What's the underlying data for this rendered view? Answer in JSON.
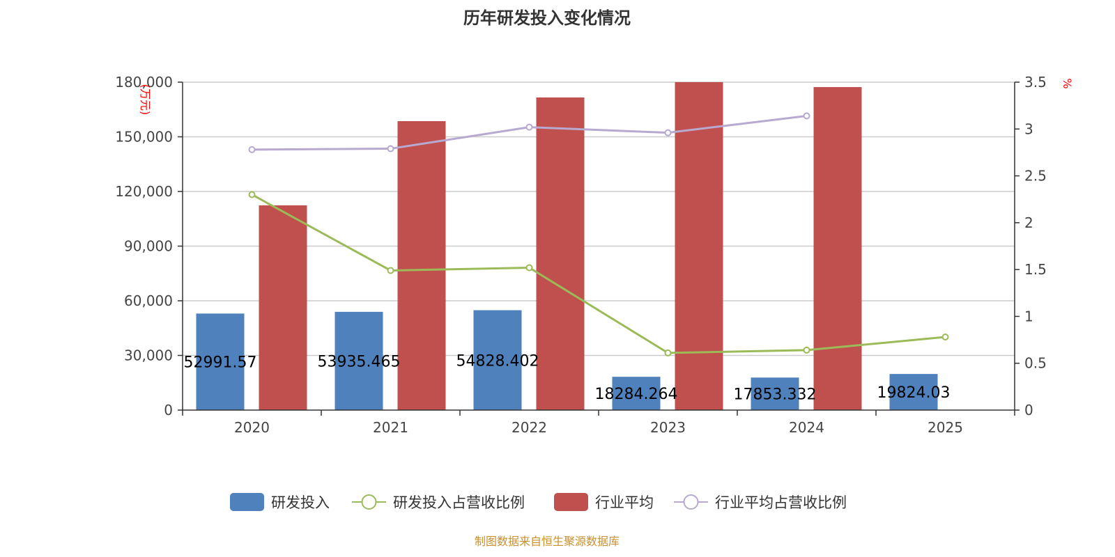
{
  "footer": "制图数据来自恒生聚源数据库",
  "chart_data": {
    "type": "bar+line",
    "title": "历年研发投入变化情况",
    "categories": [
      "2020",
      "2021",
      "2022",
      "2023",
      "2024",
      "2025"
    ],
    "ylabel_left": "(万元)",
    "ylabel_right": "%",
    "ylim_left": [
      0,
      180000
    ],
    "yticks_left": [
      "0",
      "30,000",
      "60,000",
      "90,000",
      "120,000",
      "150,000",
      "180,000"
    ],
    "ylim_right": [
      0,
      3.5
    ],
    "yticks_right": [
      "0",
      "0.5",
      "1",
      "1.5",
      "2",
      "2.5",
      "3",
      "3.5"
    ],
    "grid": true,
    "legend_position": "bottom",
    "series": [
      {
        "name": "研发投入",
        "type": "bar",
        "axis": "left",
        "color": "#4f81bd",
        "values": [
          52991.57,
          53935.465,
          54828.402,
          18284.264,
          17853.332,
          19824.03
        ],
        "labels": [
          "52991.57",
          "53935.465",
          "54828.402",
          "18284.264",
          "17853.332",
          "19824.03"
        ]
      },
      {
        "name": "研发投入占营收比例",
        "type": "line",
        "axis": "right",
        "color": "#9bbb59",
        "values": [
          2.3,
          1.49,
          1.52,
          0.61,
          0.64,
          0.78
        ]
      },
      {
        "name": "行业平均",
        "type": "bar",
        "axis": "left",
        "color": "#c0504d",
        "values": [
          112400,
          158600,
          171600,
          180000,
          177300,
          null
        ]
      },
      {
        "name": "行业平均占营收比例",
        "type": "line",
        "axis": "right",
        "color": "#b7a9cf",
        "values": [
          2.78,
          2.79,
          3.02,
          2.96,
          3.14,
          null
        ]
      }
    ]
  }
}
